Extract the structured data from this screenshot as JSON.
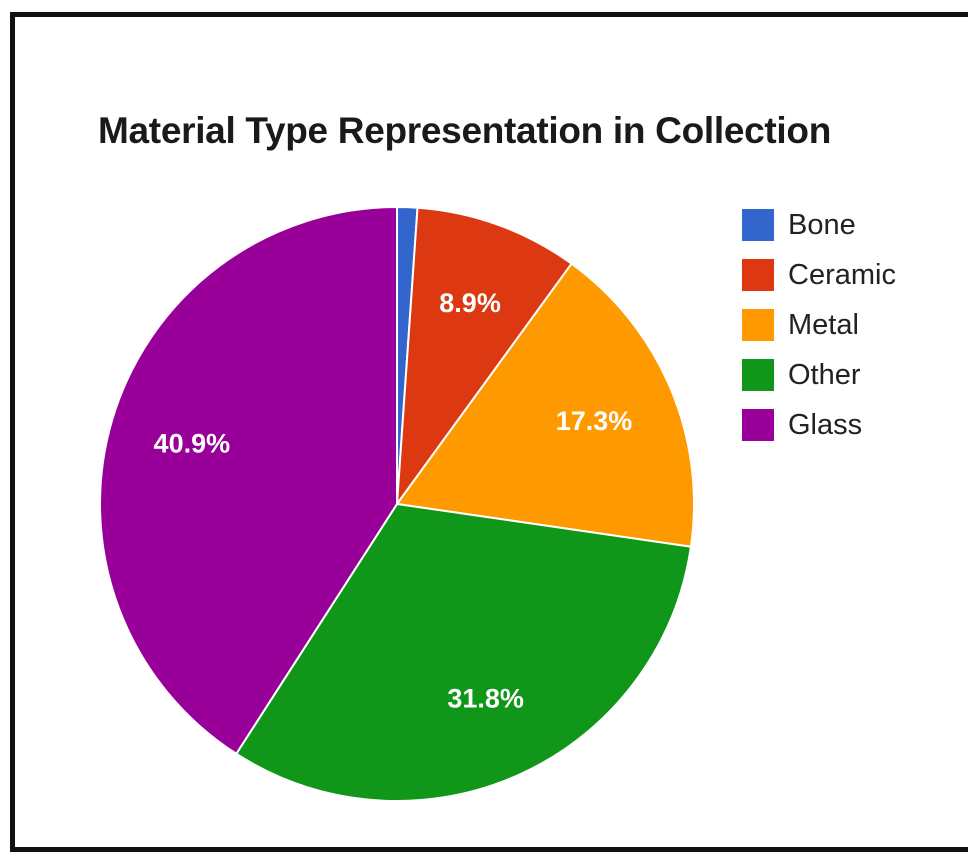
{
  "chart_data": {
    "type": "pie",
    "title": "Material Type Representation in Collection",
    "legend_position": "right",
    "slices": [
      {
        "name": "Bone",
        "value": 1.1,
        "label": "",
        "color": "#3366CC"
      },
      {
        "name": "Ceramic",
        "value": 8.9,
        "label": "8.9%",
        "color": "#DC3912"
      },
      {
        "name": "Metal",
        "value": 17.3,
        "label": "17.3%",
        "color": "#FF9900"
      },
      {
        "name": "Other",
        "value": 31.8,
        "label": "31.8%",
        "color": "#109618"
      },
      {
        "name": "Glass",
        "value": 40.9,
        "label": "40.9%",
        "color": "#990099"
      }
    ]
  }
}
